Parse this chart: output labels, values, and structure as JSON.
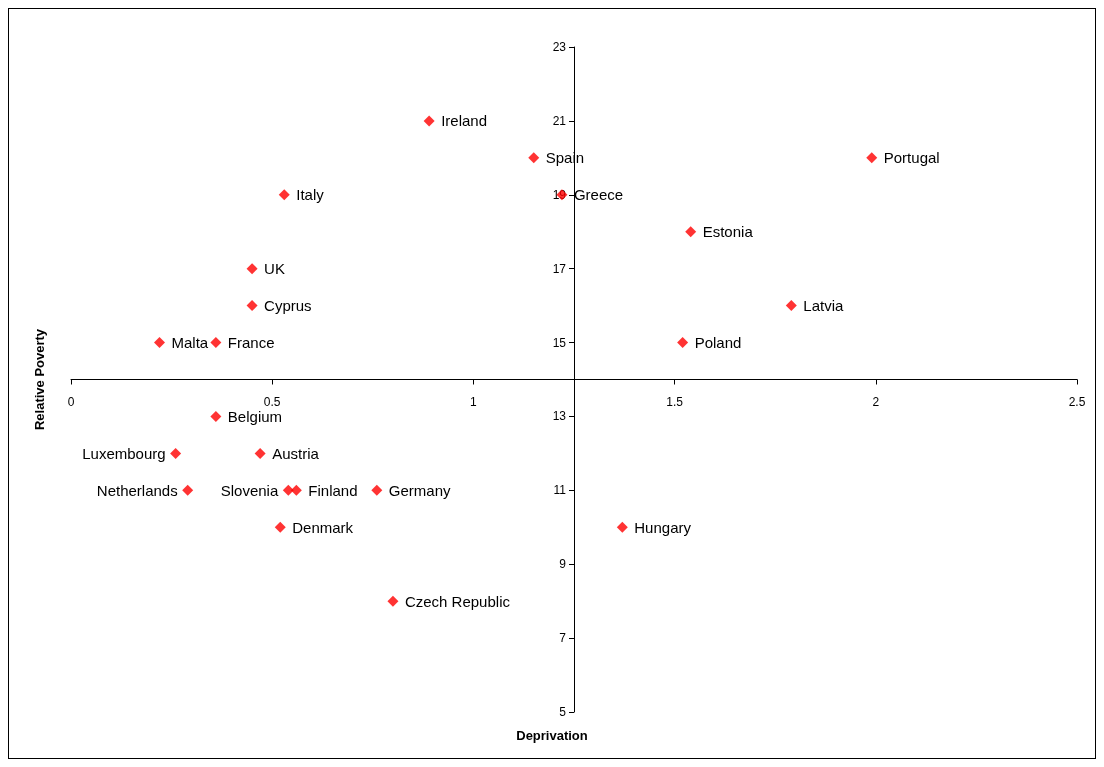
{
  "chart_data": {
    "type": "scatter",
    "xlabel": "Deprivation",
    "ylabel": "Relative Poverty",
    "series": [
      {
        "color": "#ff0000",
        "x": [
          0.89,
          1.15,
          1.99,
          1.22,
          0.53,
          1.54,
          0.45,
          0.45,
          1.79,
          0.22,
          0.36,
          1.52,
          0.36,
          0.26,
          0.47,
          0.29,
          0.54,
          0.56,
          0.76,
          0.52,
          1.37,
          0.8
        ],
        "values": [
          21,
          20,
          20,
          19,
          19,
          18,
          17,
          16,
          16,
          15,
          15,
          15,
          13,
          12,
          12,
          11,
          11,
          11,
          11,
          10,
          10,
          8
        ]
      }
    ],
    "annotations": [
      {
        "text": "Ireland",
        "x": 0.89,
        "y": 21
      },
      {
        "text": "Spain",
        "x": 1.15,
        "y": 20
      },
      {
        "text": "Portugal",
        "x": 1.99,
        "y": 20
      },
      {
        "text": "Greece",
        "x": 1.22,
        "y": 19
      },
      {
        "text": "Italy",
        "x": 0.53,
        "y": 19
      },
      {
        "text": "Estonia",
        "x": 1.54,
        "y": 18
      },
      {
        "text": "UK",
        "x": 0.45,
        "y": 17
      },
      {
        "text": "Cyprus",
        "x": 0.45,
        "y": 16
      },
      {
        "text": "Latvia",
        "x": 1.79,
        "y": 16
      },
      {
        "text": "Malta",
        "x": 0.22,
        "y": 15
      },
      {
        "text": "France",
        "x": 0.36,
        "y": 15
      },
      {
        "text": "Poland",
        "x": 1.52,
        "y": 15
      },
      {
        "text": "Belgium",
        "x": 0.36,
        "y": 13
      },
      {
        "text": "Luxembourg",
        "x": 0.26,
        "y": 12
      },
      {
        "text": "Austria",
        "x": 0.47,
        "y": 12
      },
      {
        "text": "Netherlands",
        "x": 0.29,
        "y": 11
      },
      {
        "text": "Slovenia",
        "x": 0.54,
        "y": 11
      },
      {
        "text": "Finland",
        "x": 0.56,
        "y": 11
      },
      {
        "text": "Germany",
        "x": 0.76,
        "y": 11
      },
      {
        "text": "Denmark",
        "x": 0.52,
        "y": 10
      },
      {
        "text": "Hungary",
        "x": 1.37,
        "y": 10
      },
      {
        "text": "Czech Republic",
        "x": 0.8,
        "y": 8
      }
    ],
    "xlim": [
      0,
      2.5
    ],
    "xticks": [
      0,
      0.5,
      1,
      1.5,
      2,
      2.5
    ],
    "ylim": [
      5,
      23
    ],
    "yticks": [
      5,
      7,
      9,
      11,
      13,
      15,
      17,
      19,
      21,
      23
    ],
    "grid": false,
    "marker": "diamond"
  }
}
